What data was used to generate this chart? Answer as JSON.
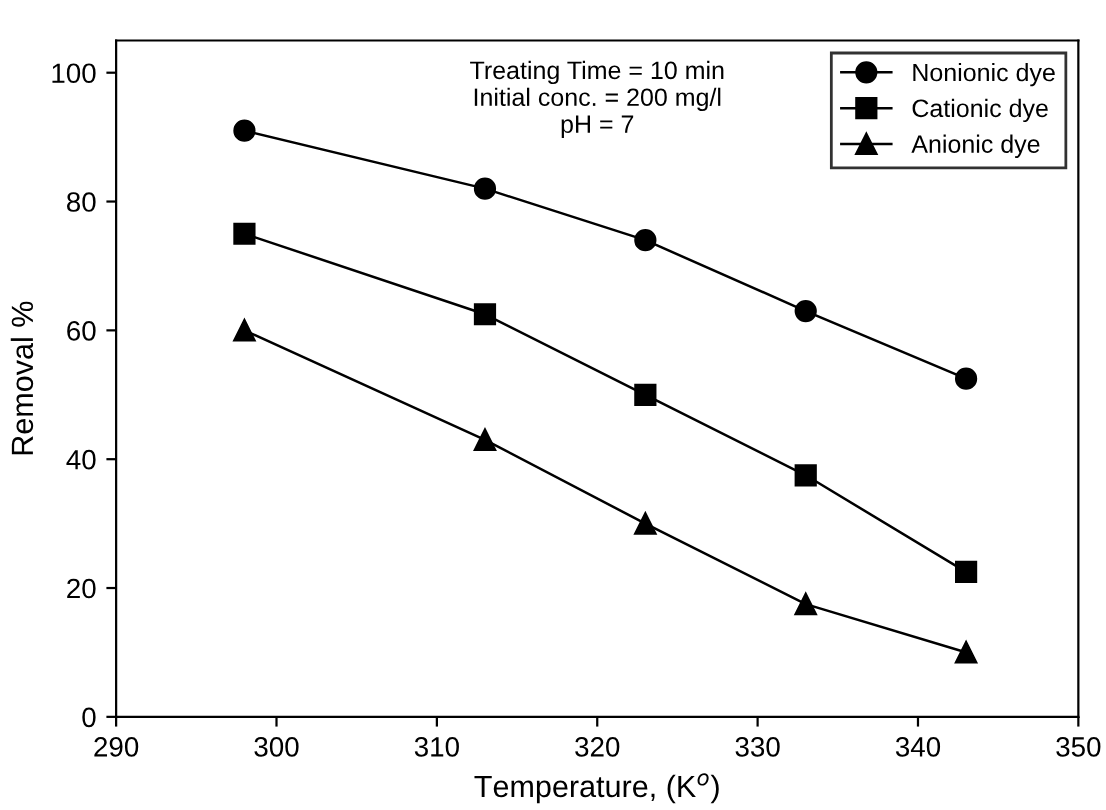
{
  "chart_data": {
    "type": "line",
    "xlabel": "Temperature, (K$^{o}$)",
    "ylabel": "Removal %",
    "annotations": [
      "Treating Time = 10 min\nInitial conc. = 200 mg/l\npH = 7"
    ],
    "x": [
      298,
      313,
      323,
      333,
      343
    ],
    "series": [
      {
        "name": "Nonionic dye",
        "color": "#000000",
        "marker": "circle",
        "values": [
          91,
          82,
          74,
          63,
          52.5
        ]
      },
      {
        "name": "Cationic dye",
        "color": "#000000",
        "marker": "square",
        "values": [
          75,
          62.5,
          50,
          37.5,
          22.5
        ]
      },
      {
        "name": "Anionic dye",
        "color": "#000000",
        "marker": "triangle",
        "values": [
          60,
          43,
          30,
          17.5,
          10
        ]
      }
    ],
    "xlim": [
      290,
      350
    ],
    "xticks": [
      290,
      300,
      310,
      320,
      330,
      340,
      350
    ],
    "ylim": [
      0,
      105
    ],
    "yticks": [
      0,
      20,
      40,
      60,
      80,
      100
    ],
    "grid": false,
    "legend": "top right",
    "line_style": "solid"
  }
}
